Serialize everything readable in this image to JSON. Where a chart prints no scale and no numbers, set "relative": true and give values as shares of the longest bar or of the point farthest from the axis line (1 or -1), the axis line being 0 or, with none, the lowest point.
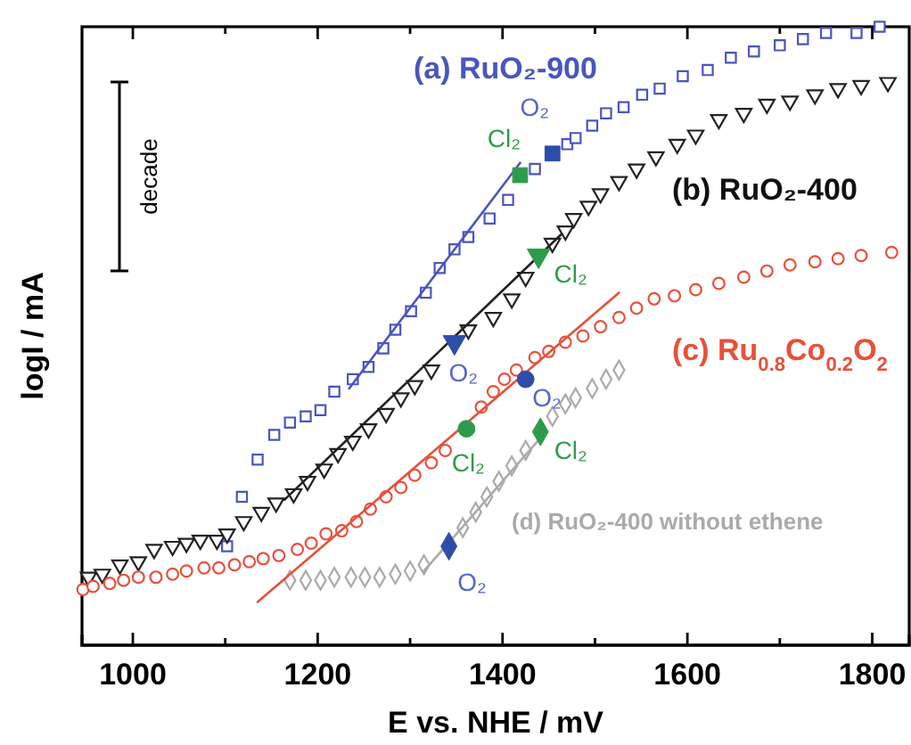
{
  "chart_data": {
    "type": "scatter",
    "relative": true,
    "xlabel": "E vs. NHE / mV",
    "ylabel": "logI / mA",
    "xlim": [
      945,
      1840
    ],
    "xticks": [
      1000,
      {
        "value": 1100,
        "label": null
      },
      1200,
      {
        "value": 1300,
        "label": null
      },
      1400,
      {
        "value": 1500,
        "label": null
      },
      1600,
      {
        "value": 1700,
        "label": null
      },
      1800
    ],
    "grid": false,
    "series": [
      {
        "name": "(a) RuO₂-900",
        "color": "#4a55c0",
        "marker": "square",
        "x": [
          1102,
          1118,
          1135,
          1153,
          1170,
          1187,
          1203,
          1218,
          1238,
          1255,
          1271,
          1284,
          1301,
          1317,
          1332,
          1348,
          1363,
          1386,
          1406,
          1435,
          1470,
          1479,
          1497,
          1512,
          1531,
          1551,
          1570,
          1595,
          1622,
          1647,
          1672,
          1700,
          1725,
          1750,
          1783,
          1808
        ],
        "values": [
          0.16,
          0.24,
          0.3,
          0.34,
          0.36,
          0.37,
          0.38,
          0.41,
          0.43,
          0.45,
          0.48,
          0.51,
          0.54,
          0.57,
          0.61,
          0.64,
          0.66,
          0.69,
          0.72,
          0.77,
          0.81,
          0.82,
          0.84,
          0.86,
          0.87,
          0.89,
          0.9,
          0.92,
          0.93,
          0.95,
          0.96,
          0.97,
          0.98,
          0.99,
          0.99,
          1.0
        ]
      },
      {
        "name": "(b) RuO₂-400",
        "color": "#222222",
        "marker": "triangle",
        "x": [
          952,
          967,
          986,
          1006,
          1023,
          1043,
          1058,
          1073,
          1091,
          1102,
          1120,
          1139,
          1155,
          1174,
          1189,
          1207,
          1222,
          1238,
          1255,
          1274,
          1290,
          1305,
          1323,
          1363,
          1390,
          1410,
          1425,
          1454,
          1468,
          1477,
          1493,
          1506,
          1526,
          1545,
          1566,
          1589,
          1609,
          1634,
          1661,
          1686,
          1711,
          1738,
          1763,
          1788,
          1817
        ],
        "values": [
          0.11,
          0.115,
          0.13,
          0.135,
          0.155,
          0.16,
          0.165,
          0.17,
          0.17,
          0.18,
          0.2,
          0.215,
          0.23,
          0.245,
          0.265,
          0.285,
          0.31,
          0.33,
          0.35,
          0.375,
          0.4,
          0.42,
          0.445,
          0.51,
          0.53,
          0.56,
          0.595,
          0.65,
          0.67,
          0.69,
          0.71,
          0.73,
          0.75,
          0.77,
          0.79,
          0.81,
          0.825,
          0.85,
          0.86,
          0.875,
          0.88,
          0.89,
          0.9,
          0.905,
          0.91
        ]
      },
      {
        "name": "(c) Ru$_{0.8}$Co$_{0.2}$O$_{2}$",
        "color": "#e8503a",
        "marker": "circle",
        "x": [
          946,
          957,
          975,
          990,
          1006,
          1025,
          1043,
          1058,
          1077,
          1093,
          1110,
          1126,
          1141,
          1158,
          1178,
          1193,
          1209,
          1226,
          1242,
          1257,
          1274,
          1290,
          1305,
          1323,
          1338,
          1377,
          1390,
          1402,
          1415,
          1435,
          1450,
          1468,
          1487,
          1506,
          1526,
          1545,
          1564,
          1586,
          1609,
          1634,
          1661,
          1686,
          1711,
          1738,
          1763,
          1788,
          1821
        ],
        "values": [
          0.09,
          0.095,
          0.1,
          0.105,
          0.11,
          0.11,
          0.115,
          0.12,
          0.125,
          0.125,
          0.13,
          0.135,
          0.14,
          0.145,
          0.155,
          0.165,
          0.18,
          0.185,
          0.2,
          0.22,
          0.24,
          0.255,
          0.275,
          0.295,
          0.315,
          0.385,
          0.41,
          0.43,
          0.445,
          0.465,
          0.475,
          0.49,
          0.5,
          0.515,
          0.53,
          0.545,
          0.56,
          0.565,
          0.575,
          0.585,
          0.595,
          0.605,
          0.615,
          0.62,
          0.625,
          0.63,
          0.635
        ]
      },
      {
        "name": "(d) RuO₂-400 without ethene",
        "color": "#aaaaaa",
        "marker": "diamond",
        "x": [
          1170,
          1187,
          1203,
          1218,
          1236,
          1251,
          1267,
          1284,
          1300,
          1315,
          1357,
          1371,
          1383,
          1396,
          1410,
          1425,
          1454,
          1468,
          1479,
          1497,
          1512,
          1526
        ],
        "values": [
          0.105,
          0.105,
          0.105,
          0.11,
          0.11,
          0.11,
          0.11,
          0.115,
          0.12,
          0.13,
          0.19,
          0.215,
          0.24,
          0.265,
          0.29,
          0.315,
          0.37,
          0.39,
          0.4,
          0.415,
          0.43,
          0.445
        ]
      },
      {
        "type": "line",
        "color": "#4a55c0",
        "marker": "none",
        "x": [
          1234,
          1419
        ],
        "values": [
          0.415,
          0.78
        ]
      },
      {
        "type": "line",
        "color": "#222222",
        "marker": "none",
        "x": [
          1164,
          1464
        ],
        "values": [
          0.235,
          0.665
        ]
      },
      {
        "type": "line",
        "color": "#e8503a",
        "marker": "none",
        "x": [
          1135,
          1526
        ],
        "values": [
          0.07,
          0.57
        ]
      },
      {
        "type": "line",
        "color": "#aaaaaa",
        "marker": "none",
        "x": [
          1315,
          1441
        ],
        "values": [
          0.12,
          0.335
        ]
      },
      {
        "marker": "square",
        "x": [
          1454,
          1419
        ],
        "values": [
          0.795,
          0.76
        ],
        "colors": [
          "#2d4ea8",
          "#2e9b4b"
        ]
      },
      {
        "marker": "triangle",
        "x": [
          1348,
          1439
        ],
        "values": [
          0.49,
          0.63
        ],
        "colors": [
          "#2d4ea8",
          "#2e9b4b"
        ]
      },
      {
        "marker": "circle",
        "x": [
          1425,
          1361
        ],
        "values": [
          0.43,
          0.35
        ],
        "colors": [
          "#2d4ea8",
          "#2e9b4b"
        ]
      },
      {
        "marker": "diamond",
        "x": [
          1342,
          1441
        ],
        "values": [
          0.16,
          0.345
        ],
        "colors": [
          "#2d4ea8",
          "#2e9b4b"
        ]
      }
    ],
    "annotations": [
      "decade",
      {
        "text": "O₂",
        "x": 1454,
        "y": 0.795
      },
      {
        "text": "Cl₂",
        "x": 1419,
        "y": 0.76
      },
      {
        "text": "O₂",
        "x": 1348,
        "y": 0.49
      },
      {
        "text": "Cl₂",
        "x": 1439,
        "y": 0.63
      },
      {
        "text": "O₂",
        "x": 1425,
        "y": 0.43
      },
      {
        "text": "Cl₂",
        "x": 1361,
        "y": 0.35
      },
      {
        "text": "O₂",
        "x": 1342,
        "y": 0.16
      },
      {
        "text": "Cl₂",
        "x": 1441,
        "y": 0.345
      }
    ]
  }
}
